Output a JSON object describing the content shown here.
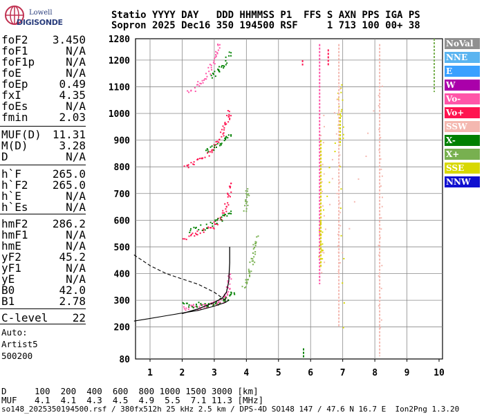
{
  "logo": {
    "line1": "Lowell",
    "line2": "DIGISONDE"
  },
  "header": {
    "line1": "Statio YYYY DAY   DDD HHMMSS P1  FFS S AXN PPS IGA PS",
    "line2": "Sopron 2025 Dec16 350 194500 RSF     1 713 100 00+ 38"
  },
  "params_group1": [
    {
      "name": "foF2",
      "value": "3.450"
    },
    {
      "name": "foF1",
      "value": "N/A"
    },
    {
      "name": "foF1p",
      "value": "N/A"
    },
    {
      "name": "foE",
      "value": "N/A"
    },
    {
      "name": "foEp",
      "value": "0.49"
    },
    {
      "name": "fxI",
      "value": "4.35"
    },
    {
      "name": "foEs",
      "value": "N/A"
    },
    {
      "name": "fmin",
      "value": "2.03"
    }
  ],
  "params_group2": [
    {
      "name": "MUF(D)",
      "value": "11.31"
    },
    {
      "name": "M(D)",
      "value": "3.28"
    },
    {
      "name": "D",
      "value": "N/A"
    }
  ],
  "params_group3": [
    {
      "name": "h`F",
      "value": "265.0"
    },
    {
      "name": "h`F2",
      "value": "265.0"
    },
    {
      "name": "h`E",
      "value": "N/A"
    },
    {
      "name": "h`Es",
      "value": "N/A"
    }
  ],
  "params_group4": [
    {
      "name": "hmF2",
      "value": "286.2"
    },
    {
      "name": "hmF1",
      "value": "N/A"
    },
    {
      "name": "hmE",
      "value": "N/A"
    },
    {
      "name": "yF2",
      "value": "45.2"
    },
    {
      "name": "yF1",
      "value": "N/A"
    },
    {
      "name": "yE",
      "value": "N/A"
    },
    {
      "name": "B0",
      "value": "42.0"
    },
    {
      "name": "B1",
      "value": "2.78"
    }
  ],
  "params_group5": [
    {
      "name": "C-level",
      "value": "22"
    }
  ],
  "auto": {
    "line1": "Auto:",
    "line2": "Artist5",
    "line3": "500200"
  },
  "legend": [
    {
      "label": "NoVal",
      "color": "#909090"
    },
    {
      "label": "NNE",
      "color": "#5ab4f0"
    },
    {
      "label": "E",
      "color": "#3aa0ff"
    },
    {
      "label": "W",
      "color": "#aa00aa"
    },
    {
      "label": "Vo-",
      "color": "#ff55a8"
    },
    {
      "label": "Vo+",
      "color": "#ff1450"
    },
    {
      "label": "SSW",
      "color": "#f4b8b0"
    },
    {
      "label": "X-",
      "color": "#008000"
    },
    {
      "label": "X+",
      "color": "#78b050"
    },
    {
      "label": "SSE",
      "color": "#d8d800"
    },
    {
      "label": "NNW",
      "color": "#1010d0"
    }
  ],
  "bottom": {
    "d_label": "D",
    "d_values": "100  200  400  600  800 1000 1500 3000 [km]",
    "muf_label": "MUF",
    "muf_values": "4.1  4.1  4.3  4.5  4.9  5.5  7.1 11.3 [MHz]"
  },
  "footer": "so148_2025350194500.rsf / 380fx512h 25 kHz 2.5 km / DPS-4D SO148 147 / 47.6 N 16.7 E  Ion2Png 1.3.20",
  "chart_data": {
    "type": "scatter",
    "xlabel": "",
    "ylabel": "",
    "xlim": [
      0.5,
      10
    ],
    "ylim": [
      80,
      1280
    ],
    "x_ticks": [
      1,
      2,
      3,
      4,
      5,
      6,
      7,
      8,
      9,
      10
    ],
    "y_ticks": [
      80,
      200,
      300,
      400,
      500,
      600,
      700,
      800,
      900,
      1000,
      1100,
      1200,
      1280
    ],
    "grid": true,
    "series": [
      {
        "name": "Vo-",
        "color": "#ff55a8",
        "points": [
          [
            2.05,
            272
          ],
          [
            2.3,
            276
          ],
          [
            2.6,
            280
          ],
          [
            2.9,
            286
          ],
          [
            3.1,
            292
          ],
          [
            3.3,
            308
          ],
          [
            3.4,
            330
          ],
          [
            3.45,
            360
          ],
          [
            3.48,
            400
          ]
        ]
      },
      {
        "name": "X-",
        "color": "#008000",
        "points": [
          [
            2.0,
            282
          ],
          [
            2.4,
            284
          ],
          [
            2.8,
            288
          ],
          [
            3.1,
            296
          ],
          [
            3.4,
            310
          ],
          [
            3.6,
            330
          ]
        ]
      },
      {
        "name": "Vo+",
        "color": "#ff1450",
        "points": [
          [
            2.05,
            536
          ],
          [
            2.4,
            548
          ],
          [
            2.7,
            562
          ],
          [
            3.0,
            586
          ],
          [
            3.2,
            612
          ],
          [
            3.35,
            650
          ],
          [
            3.45,
            700
          ],
          [
            3.5,
            740
          ]
        ]
      },
      {
        "name": "X-",
        "color": "#008000",
        "points": [
          [
            2.2,
            560
          ],
          [
            2.6,
            574
          ],
          [
            3.0,
            592
          ],
          [
            3.3,
            614
          ],
          [
            3.5,
            636
          ]
        ]
      },
      {
        "name": "Vo+",
        "color": "#ff1450",
        "points": [
          [
            2.05,
            800
          ],
          [
            2.4,
            820
          ],
          [
            2.7,
            842
          ],
          [
            2.95,
            872
          ],
          [
            3.15,
            904
          ],
          [
            3.3,
            940
          ],
          [
            3.4,
            980
          ],
          [
            3.45,
            1010
          ]
        ]
      },
      {
        "name": "X-",
        "color": "#008000",
        "points": [
          [
            2.7,
            860
          ],
          [
            3.0,
            880
          ],
          [
            3.3,
            900
          ],
          [
            3.5,
            918
          ]
        ]
      },
      {
        "name": "Vo-",
        "color": "#ff55a8",
        "points": [
          [
            2.2,
            1080
          ],
          [
            2.5,
            1110
          ],
          [
            2.7,
            1140
          ],
          [
            2.9,
            1180
          ],
          [
            3.05,
            1220
          ],
          [
            3.15,
            1260
          ]
        ]
      },
      {
        "name": "X-",
        "color": "#008000",
        "points": [
          [
            2.9,
            1140
          ],
          [
            3.1,
            1160
          ],
          [
            3.3,
            1190
          ],
          [
            3.5,
            1230
          ]
        ]
      },
      {
        "name": "X+",
        "color": "#78b050",
        "points": [
          [
            3.9,
            350
          ],
          [
            4.0,
            380
          ],
          [
            4.1,
            420
          ],
          [
            4.2,
            460
          ],
          [
            4.25,
            500
          ],
          [
            4.3,
            540
          ]
        ]
      },
      {
        "name": "X+",
        "color": "#78b050",
        "points": [
          [
            3.95,
            640
          ],
          [
            4.0,
            680
          ],
          [
            4.02,
            720
          ]
        ]
      },
      {
        "name": "SSE",
        "color": "#d8d800",
        "points": [
          [
            6.3,
            460
          ],
          [
            6.3,
            520
          ],
          [
            6.3,
            600
          ],
          [
            6.9,
            1000
          ],
          [
            6.9,
            1100
          ],
          [
            6.95,
            900
          ],
          [
            7.0,
            200
          ]
        ]
      },
      {
        "name": "SSW",
        "color": "#f4b8b0",
        "points": [
          [
            6.35,
            1000
          ],
          [
            6.35,
            700
          ],
          [
            6.35,
            400
          ],
          [
            6.85,
            1100
          ],
          [
            6.85,
            700
          ],
          [
            6.85,
            400
          ],
          [
            8.15,
            1100
          ],
          [
            8.15,
            800
          ],
          [
            8.15,
            500
          ],
          [
            8.15,
            200
          ]
        ]
      }
    ],
    "profile_fit": [
      [
        2.0,
        250
      ],
      [
        2.5,
        268
      ],
      [
        3.0,
        292
      ],
      [
        3.25,
        308
      ],
      [
        3.38,
        330
      ],
      [
        3.45,
        370
      ],
      [
        3.48,
        440
      ],
      [
        3.48,
        500
      ]
    ],
    "profile_extrapolation": [
      [
        0.5,
        470
      ],
      [
        1.0,
        430
      ],
      [
        1.5,
        400
      ],
      [
        2.0,
        380
      ],
      [
        2.5,
        360
      ],
      [
        3.0,
        330
      ],
      [
        3.35,
        300
      ]
    ],
    "profile_bottom": [
      [
        0.5,
        222
      ],
      [
        1.0,
        232
      ],
      [
        1.5,
        242
      ],
      [
        2.0,
        252
      ],
      [
        2.5,
        262
      ],
      [
        3.0,
        278
      ],
      [
        3.35,
        292
      ],
      [
        3.45,
        300
      ]
    ]
  }
}
